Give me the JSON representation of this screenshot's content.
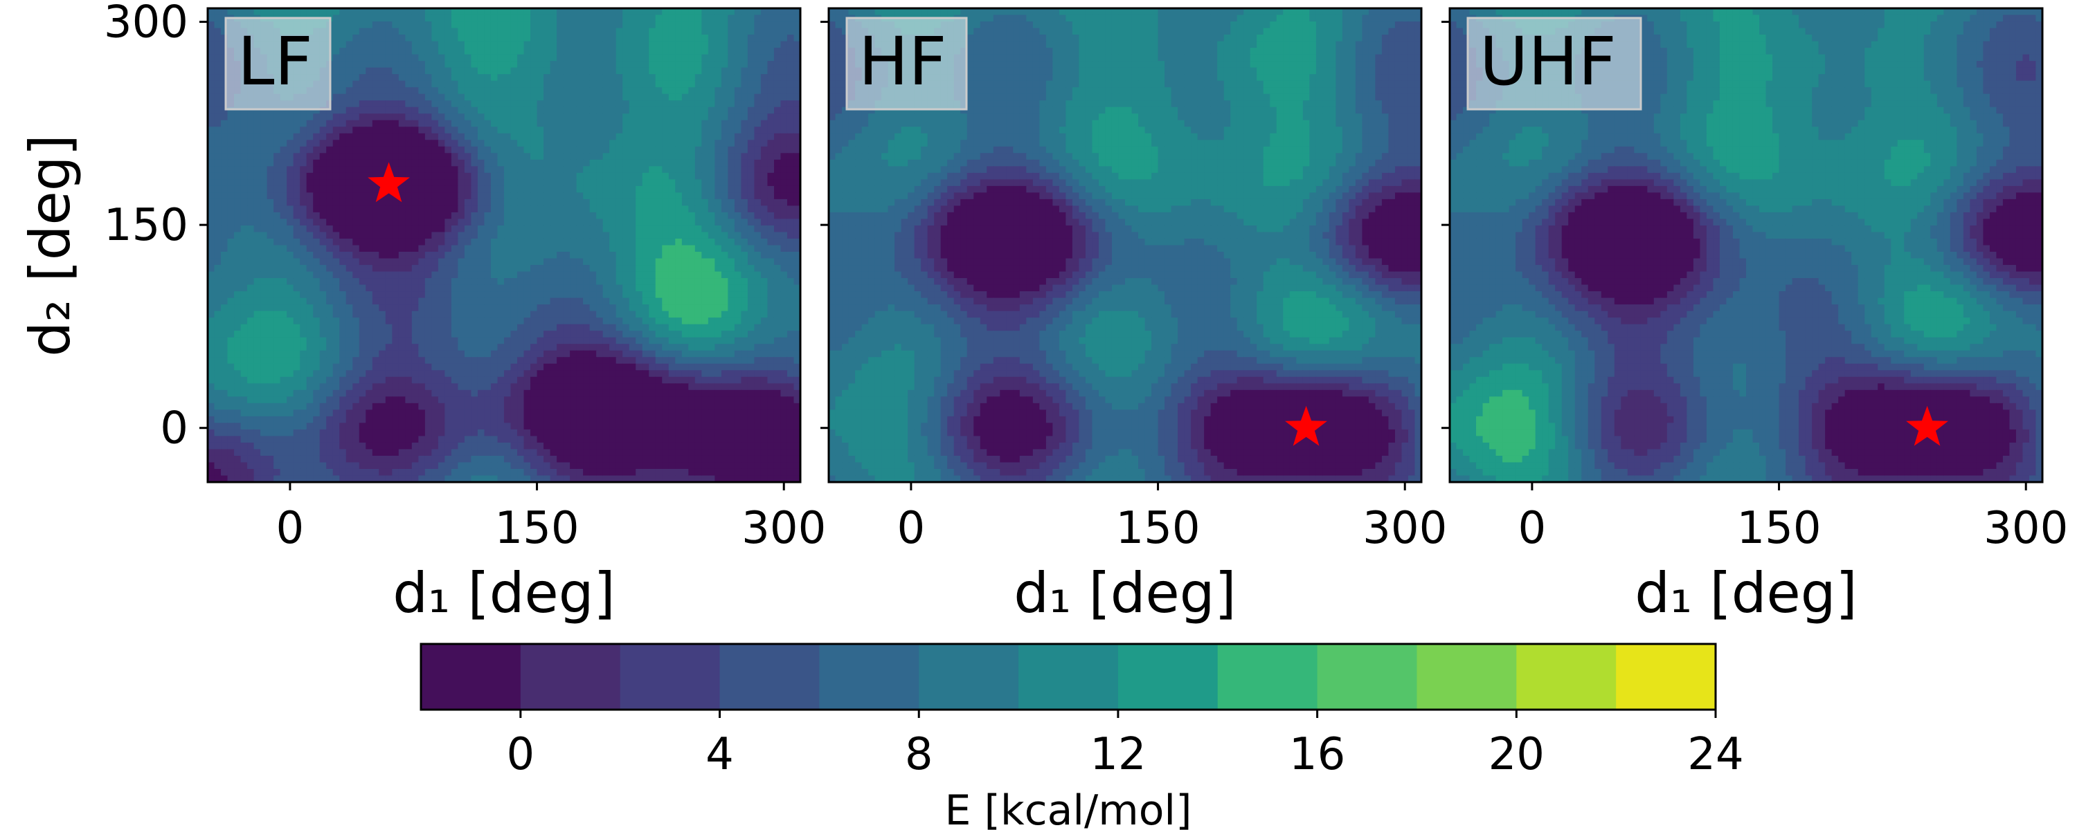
{
  "chart_data": {
    "type": "contour",
    "x_axis": {
      "ticks": [
        0,
        150,
        300
      ],
      "range": [
        -50,
        310
      ]
    },
    "y_axis": {
      "ticks": [
        0,
        150,
        300
      ],
      "range": [
        -40,
        310
      ]
    },
    "panels": [
      {
        "label": "LF",
        "xlabel": "d₁ [deg]",
        "ylabel": "d₂ [deg]",
        "minimum": {
          "d1": 60,
          "d2": 180
        },
        "features": [
          {
            "type": "min",
            "d1": 60,
            "d2": 180,
            "depth": 21
          },
          {
            "type": "min",
            "d1": 190,
            "d2": 12,
            "depth": 16
          },
          {
            "type": "min",
            "d1": 280,
            "d2": -5,
            "depth": 16
          },
          {
            "type": "min",
            "d1": 60,
            "d2": 0,
            "depth": 11
          },
          {
            "type": "min",
            "d1": 310,
            "d2": 180,
            "depth": 10
          },
          {
            "type": "min",
            "d1": -40,
            "d2": -30,
            "depth": 9
          },
          {
            "type": "max",
            "d1": 235,
            "d2": 275,
            "height": 5
          },
          {
            "type": "max",
            "d1": 250,
            "d2": 95,
            "height": 6
          },
          {
            "type": "max",
            "d1": 140,
            "d2": 290,
            "height": 3
          },
          {
            "type": "max",
            "d1": -30,
            "d2": 70,
            "height": 4
          }
        ]
      },
      {
        "label": "HF",
        "xlabel": "d₁ [deg]",
        "minimum": {
          "d1": 240,
          "d2": 0
        },
        "features": [
          {
            "type": "min",
            "d1": 240,
            "d2": 0,
            "depth": 20
          },
          {
            "type": "min",
            "d1": 60,
            "d2": 0,
            "depth": 13
          },
          {
            "type": "min",
            "d1": 60,
            "d2": 145,
            "depth": 15
          },
          {
            "type": "min",
            "d1": 300,
            "d2": 145,
            "depth": 13
          },
          {
            "type": "max",
            "d1": 210,
            "d2": 275,
            "height": 6
          },
          {
            "type": "max",
            "d1": 260,
            "d2": 80,
            "height": 5
          },
          {
            "type": "max",
            "d1": 120,
            "d2": 70,
            "height": 4
          }
        ]
      },
      {
        "label": "UHF",
        "xlabel": "d₁ [deg]",
        "minimum": {
          "d1": 240,
          "d2": 0
        },
        "features": [
          {
            "type": "min",
            "d1": 240,
            "d2": 0,
            "depth": 20
          },
          {
            "type": "min",
            "d1": 60,
            "d2": 0,
            "depth": 11
          },
          {
            "type": "min",
            "d1": 60,
            "d2": 145,
            "depth": 15
          },
          {
            "type": "min",
            "d1": 300,
            "d2": 145,
            "depth": 13
          },
          {
            "type": "max",
            "d1": 180,
            "d2": 275,
            "height": 5
          },
          {
            "type": "max",
            "d1": 260,
            "d2": 85,
            "height": 5
          },
          {
            "type": "max",
            "d1": 0,
            "d2": 0,
            "height": 4
          }
        ]
      }
    ],
    "colorbar": {
      "label": "E [kcal/mol]",
      "levels": [
        -2,
        0,
        2,
        4,
        6,
        8,
        10,
        12,
        14,
        16,
        18,
        20,
        22,
        24
      ],
      "ticks": [
        0,
        4,
        8,
        12,
        16,
        20,
        24
      ],
      "colors": [
        "#440f5a",
        "#482d70",
        "#433f80",
        "#3a5588",
        "#31688e",
        "#2a788e",
        "#22898c",
        "#1f9b89",
        "#35b779",
        "#54c569",
        "#7ad151",
        "#b0dd2f",
        "#e7e419"
      ]
    },
    "marker": {
      "shape": "star",
      "color": "#ff0000"
    }
  }
}
